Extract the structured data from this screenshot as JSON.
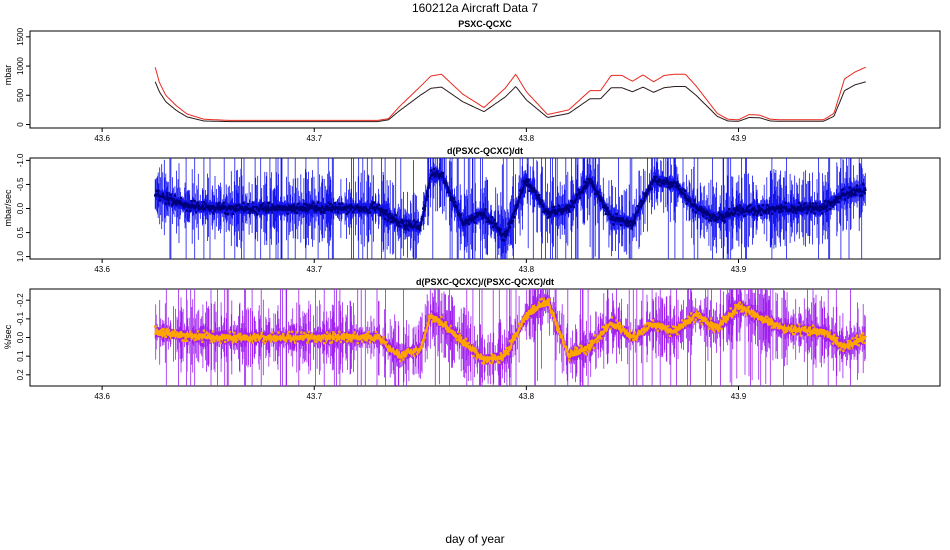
{
  "figure": {
    "title": "160212a   Aircraft Data 7",
    "xlabel": "day of year"
  },
  "colors": {
    "red": "#e8281e",
    "dark": "#2a1a1a",
    "blue": "#1515f0",
    "navy": "#00007a",
    "purple": "#a020f0",
    "orange": "#ffa500"
  },
  "chart_data": [
    {
      "type": "line",
      "title": "PSXC-QCXC",
      "ylabel": "mbar",
      "xlim": [
        43.566,
        43.995
      ],
      "ylim": [
        -60,
        1600
      ],
      "x_ticks": [
        "43.6",
        "43.7",
        "43.8",
        "43.9"
      ],
      "y_ticks": [
        "0",
        "500",
        "1000",
        "1500"
      ],
      "x": [
        43.625,
        43.627,
        43.63,
        43.635,
        43.64,
        43.648,
        43.66,
        43.68,
        43.7,
        43.72,
        43.73,
        43.735,
        43.74,
        43.75,
        43.755,
        43.76,
        43.77,
        43.78,
        43.79,
        43.795,
        43.8,
        43.81,
        43.82,
        43.83,
        43.835,
        43.84,
        43.845,
        43.85,
        43.855,
        43.86,
        43.865,
        43.87,
        43.875,
        43.88,
        43.89,
        43.895,
        43.9,
        43.905,
        43.91,
        43.915,
        43.92,
        43.93,
        43.94,
        43.945,
        43.95,
        43.955,
        43.96
      ],
      "series": [
        {
          "name": "PSXC-QCXC (red)",
          "color": "red",
          "values": [
            980,
            720,
            500,
            320,
            180,
            90,
            70,
            70,
            70,
            70,
            70,
            100,
            300,
            650,
            830,
            860,
            520,
            290,
            620,
            860,
            560,
            170,
            250,
            580,
            580,
            840,
            840,
            740,
            850,
            730,
            840,
            860,
            860,
            660,
            190,
            90,
            80,
            170,
            160,
            90,
            80,
            80,
            80,
            190,
            780,
            900,
            980
          ]
        },
        {
          "name": "PSXC-QCXC (dark)",
          "color": "dark",
          "values": [
            730,
            560,
            390,
            240,
            130,
            60,
            50,
            50,
            50,
            50,
            50,
            80,
            230,
            500,
            620,
            640,
            390,
            220,
            470,
            650,
            420,
            120,
            190,
            440,
            440,
            630,
            630,
            560,
            640,
            550,
            630,
            650,
            650,
            500,
            140,
            60,
            55,
            120,
            115,
            60,
            55,
            55,
            55,
            140,
            580,
            680,
            730
          ]
        }
      ]
    },
    {
      "type": "line",
      "title": "d(PSXC-QCXC)/dt",
      "ylabel": "mbar/sec",
      "xlim": [
        43.566,
        43.995
      ],
      "ylim": [
        1.05,
        -1.05
      ],
      "x_ticks": [
        "43.6",
        "43.7",
        "43.8",
        "43.9"
      ],
      "y_ticks": [
        "-1.0",
        "-0.5",
        "0.0",
        "0.5",
        "1.0"
      ],
      "x": [
        43.625,
        43.64,
        43.66,
        43.7,
        43.73,
        43.74,
        43.75,
        43.755,
        43.76,
        43.77,
        43.78,
        43.79,
        43.8,
        43.81,
        43.82,
        43.83,
        43.84,
        43.85,
        43.86,
        43.87,
        43.88,
        43.89,
        43.9,
        43.92,
        43.94,
        43.95,
        43.96
      ],
      "series": [
        {
          "name": "d(PSXC-QCXC)/dt",
          "color": "navy",
          "values": [
            -0.3,
            -0.05,
            0.0,
            0.0,
            0.0,
            0.3,
            0.4,
            -0.7,
            -0.7,
            0.3,
            0.1,
            0.6,
            -0.6,
            0.1,
            0.0,
            -0.6,
            0.2,
            0.3,
            -0.6,
            -0.5,
            0.0,
            0.2,
            0.05,
            0.0,
            0.0,
            -0.3,
            -0.4
          ]
        }
      ],
      "band_color": "blue"
    },
    {
      "type": "line",
      "title": "d(PSXC-QCXC)/(PSXC-QCXC)/dt",
      "ylabel": "%/sec",
      "xlim": [
        43.566,
        43.995
      ],
      "ylim": [
        0.26,
        -0.26
      ],
      "x_ticks": [
        "43.6",
        "43.7",
        "43.8",
        "43.9"
      ],
      "y_ticks": [
        "-0.2",
        "-0.1",
        "0.0",
        "0.1",
        "0.2"
      ],
      "x": [
        43.625,
        43.64,
        43.66,
        43.7,
        43.73,
        43.74,
        43.75,
        43.755,
        43.76,
        43.77,
        43.78,
        43.79,
        43.8,
        43.81,
        43.82,
        43.83,
        43.84,
        43.85,
        43.86,
        43.87,
        43.88,
        43.89,
        43.9,
        43.92,
        43.94,
        43.95,
        43.96
      ],
      "series": [
        {
          "name": "d(PSXC-QCXC)/(PSXC-QCXC)/dt",
          "color": "orange",
          "values": [
            -0.03,
            -0.01,
            0.0,
            0.0,
            0.0,
            0.1,
            0.06,
            -0.12,
            -0.08,
            0.02,
            0.12,
            0.1,
            -0.12,
            -0.2,
            0.1,
            0.05,
            -0.08,
            0.0,
            -0.07,
            -0.03,
            -0.12,
            -0.05,
            -0.17,
            -0.05,
            -0.03,
            0.05,
            0.0
          ]
        }
      ],
      "band_color": "purple"
    }
  ]
}
